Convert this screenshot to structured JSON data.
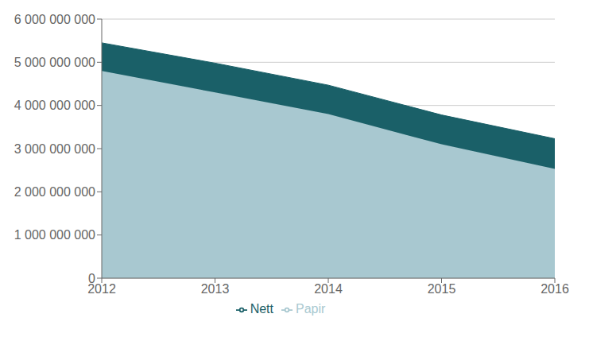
{
  "chart_data": {
    "type": "area",
    "stacked": true,
    "x": [
      2012,
      2013,
      2014,
      2015,
      2016
    ],
    "xlim": [
      2012,
      2016
    ],
    "xticks": [
      2012,
      2013,
      2014,
      2015,
      2016
    ],
    "series": [
      {
        "name": "Papir",
        "color": "#a8c8d0",
        "values": [
          4800000000,
          4300000000,
          3800000000,
          3100000000,
          2530000000
        ]
      },
      {
        "name": "Nett",
        "color": "#1a6068",
        "values": [
          650000000,
          680000000,
          670000000,
          680000000,
          700000000
        ]
      }
    ],
    "ylim": [
      0,
      6000000000
    ],
    "yticks": [
      0,
      {
        "value": 1000000000,
        "label": "1 000 000 000"
      },
      {
        "value": 2000000000,
        "label": "2 000 000 000"
      },
      {
        "value": 3000000000,
        "label": "3 000 000 000"
      },
      {
        "value": 4000000000,
        "label": "4 000 000 000"
      },
      {
        "value": 5000000000,
        "label": "5 000 000 000"
      },
      {
        "value": 6000000000,
        "label": "6 000 000 000"
      }
    ],
    "grid": true,
    "legend": "bottom"
  }
}
